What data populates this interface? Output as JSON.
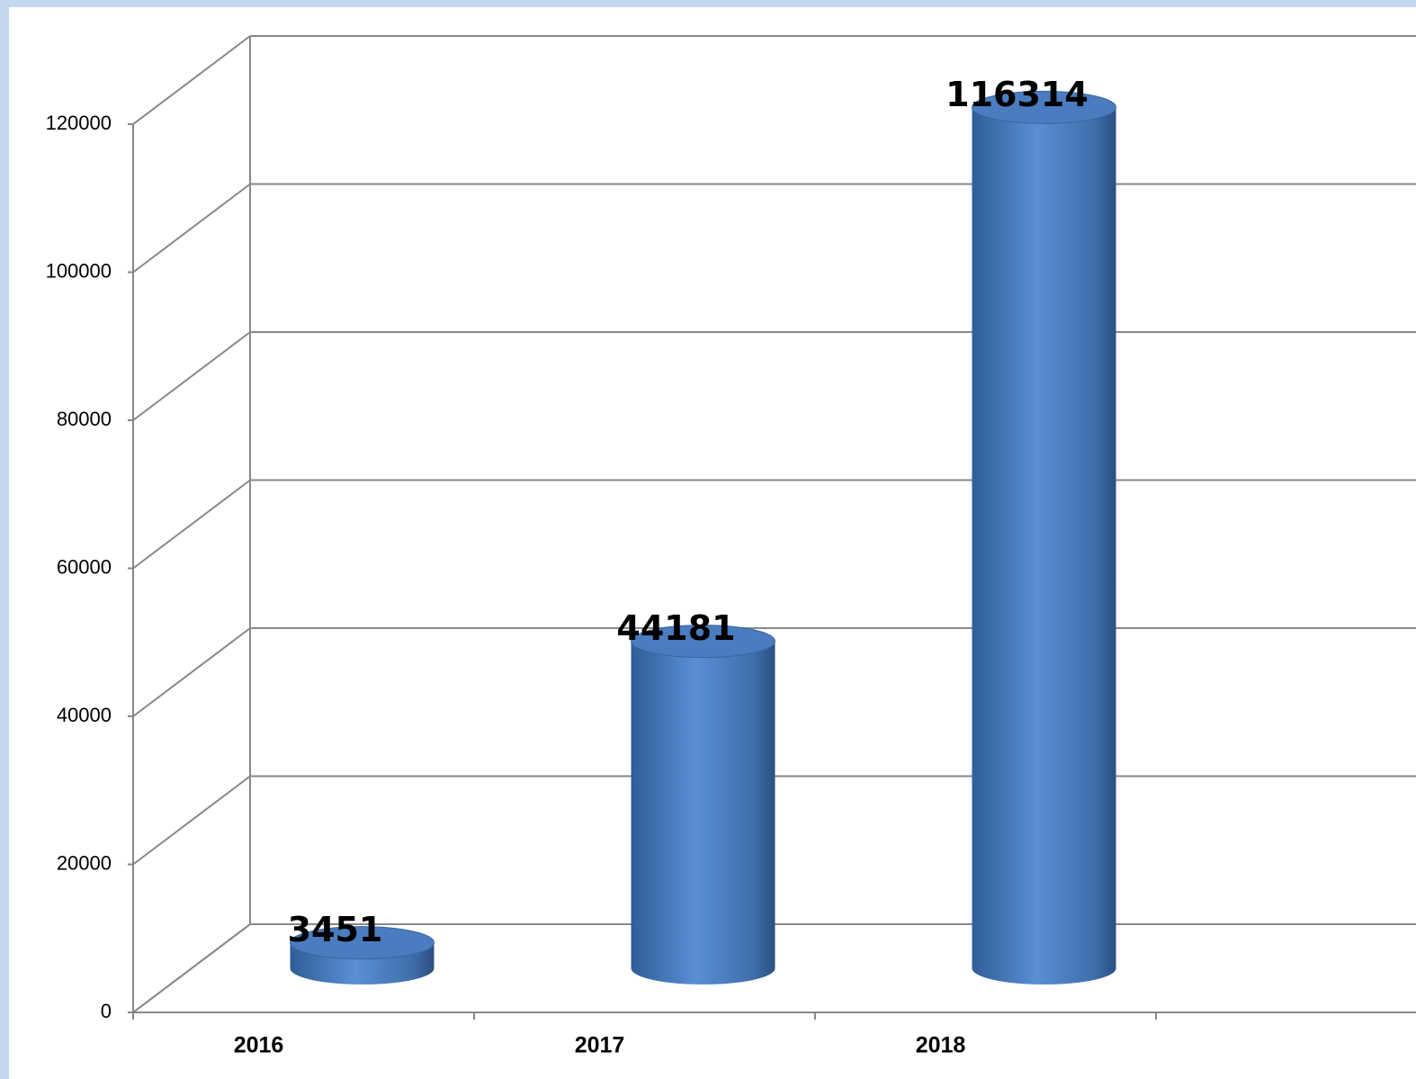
{
  "chart_data": {
    "type": "cylinder-bar",
    "categories": [
      "2016",
      "2017",
      "2018"
    ],
    "values": [
      3451,
      44181,
      116314
    ],
    "color": "#4a7cbf",
    "ylim": [
      0,
      120000
    ],
    "yticks": [
      0,
      20000,
      40000,
      60000,
      80000,
      100000,
      120000
    ],
    "grid": true
  }
}
